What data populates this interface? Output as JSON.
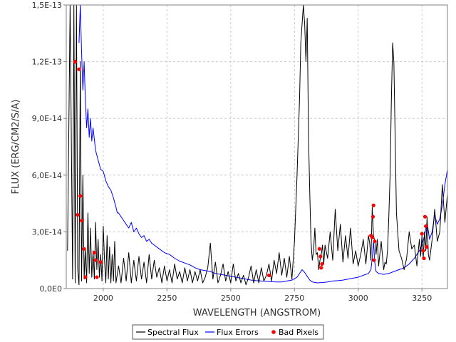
{
  "chart_data": {
    "type": "line",
    "xlabel": "WAVELENGTH (ANGSTROM)",
    "ylabel": "FLUX (ERG/CM2/S/A)",
    "xlim": [
      1855,
      3350
    ],
    "ylim": [
      0,
      1.5e-13
    ],
    "xticks": [
      2000,
      2250,
      2500,
      2750,
      3000,
      3250
    ],
    "xtick_labels": [
      "2000",
      "2250",
      "2500",
      "2750",
      "3000",
      "3250"
    ],
    "yticks": [
      0,
      3e-14,
      6e-14,
      9e-14,
      1.2e-13,
      1.5e-13
    ],
    "ytick_labels": [
      "0,0E0",
      "3,0E-14",
      "6,0E-14",
      "9,0E-14",
      "1,2E-13",
      "1,5E-13"
    ],
    "grid": true,
    "legend_position": "bottom-center",
    "series": [
      {
        "name": "Spectral Flux",
        "color": "#000000",
        "x": [
          1860,
          1870,
          1880,
          1885,
          1890,
          1895,
          1900,
          1905,
          1910,
          1915,
          1920,
          1925,
          1930,
          1935,
          1940,
          1945,
          1950,
          1955,
          1960,
          1965,
          1970,
          1975,
          1980,
          1985,
          1990,
          1995,
          2000,
          2005,
          2010,
          2015,
          2020,
          2025,
          2030,
          2035,
          2040,
          2045,
          2050,
          2060,
          2070,
          2080,
          2090,
          2100,
          2110,
          2120,
          2130,
          2140,
          2150,
          2160,
          2170,
          2180,
          2190,
          2200,
          2210,
          2220,
          2230,
          2240,
          2250,
          2260,
          2270,
          2280,
          2290,
          2300,
          2310,
          2320,
          2330,
          2340,
          2350,
          2360,
          2370,
          2380,
          2390,
          2400,
          2410,
          2420,
          2430,
          2440,
          2450,
          2460,
          2470,
          2480,
          2490,
          2500,
          2510,
          2520,
          2530,
          2540,
          2550,
          2560,
          2570,
          2580,
          2590,
          2600,
          2610,
          2620,
          2630,
          2640,
          2650,
          2660,
          2670,
          2680,
          2690,
          2700,
          2710,
          2720,
          2730,
          2740,
          2750,
          2760,
          2770,
          2775,
          2780,
          2785,
          2790,
          2795,
          2800,
          2805,
          2810,
          2815,
          2820,
          2825,
          2830,
          2835,
          2840,
          2845,
          2850,
          2855,
          2860,
          2865,
          2870,
          2880,
          2890,
          2900,
          2910,
          2920,
          2930,
          2940,
          2950,
          2960,
          2970,
          2980,
          2990,
          3000,
          3010,
          3020,
          3030,
          3040,
          3045,
          3050,
          3055,
          3060,
          3065,
          3070,
          3075,
          3080,
          3090,
          3100,
          3105,
          3110,
          3115,
          3120,
          3125,
          3130,
          3135,
          3140,
          3145,
          3150,
          3160,
          3170,
          3180,
          3190,
          3200,
          3210,
          3220,
          3230,
          3240,
          3245,
          3250,
          3255,
          3260,
          3265,
          3270,
          3275,
          3280,
          3290,
          3300,
          3310,
          3320,
          3330,
          3340,
          3350
        ],
        "y": [
          2e-14,
          1.5e-13,
          5e-15,
          1.5e-13,
          3e-15,
          1.5e-13,
          1e-14,
          2e-15,
          1.2e-13,
          4e-15,
          6e-14,
          5e-15,
          2.1e-14,
          3e-15,
          4e-14,
          8e-15,
          3.2e-14,
          6e-15,
          2e-14,
          5e-15,
          3.5e-14,
          1e-14,
          2.6e-14,
          6e-15,
          1.8e-14,
          4e-15,
          3.3e-14,
          1.5e-14,
          3e-15,
          2.8e-14,
          5e-15,
          2.2e-14,
          3e-15,
          1.8e-14,
          4e-15,
          2.5e-14,
          3e-15,
          1.2e-14,
          3e-15,
          1.6e-14,
          4e-15,
          1.9e-14,
          3e-15,
          1.5e-14,
          4e-15,
          1.7e-14,
          5e-15,
          1.4e-14,
          3e-15,
          1.8e-14,
          5e-15,
          1.5e-14,
          6e-15,
          1.1e-14,
          3e-15,
          1.2e-14,
          4e-15,
          1e-14,
          3e-15,
          1.3e-14,
          5e-15,
          9e-15,
          3e-15,
          1.1e-14,
          4e-15,
          1e-14,
          3e-15,
          9e-15,
          4e-15,
          1e-14,
          3e-15,
          6e-15,
          1.1e-14,
          2.4e-14,
          5e-15,
          1.4e-14,
          3e-15,
          7e-15,
          1.3e-14,
          4e-15,
          9e-15,
          3e-15,
          1.3e-14,
          4e-15,
          8e-15,
          3e-15,
          7e-15,
          2e-15,
          6e-15,
          1.2e-14,
          3e-15,
          1e-14,
          3e-15,
          1.1e-14,
          4e-15,
          7e-15,
          1.3e-14,
          4e-15,
          1.5e-14,
          8e-15,
          1.9e-14,
          7e-15,
          1.6e-14,
          6e-15,
          1.7e-14,
          5e-15,
          2.5e-14,
          6e-14,
          1e-13,
          1.3e-13,
          1.4e-13,
          1.5e-13,
          1.4e-13,
          1.2e-13,
          1.43e-13,
          8e-14,
          5e-14,
          2.5e-14,
          1.5e-14,
          2e-14,
          3.2e-14,
          1.8e-14,
          1.9e-14,
          1e-14,
          1.5e-14,
          1.8e-14,
          2.3e-14,
          1.3e-14,
          2.3e-14,
          1.6e-14,
          3e-14,
          1.5e-14,
          4.2e-14,
          2e-14,
          3.4e-14,
          1.4e-14,
          2.8e-14,
          1.6e-14,
          3.2e-14,
          1.3e-14,
          2e-14,
          1.2e-14,
          1.8e-14,
          2.6e-14,
          1.3e-14,
          2.8e-14,
          2.4e-14,
          1.5e-14,
          4.3e-14,
          2.8e-14,
          2.5e-14,
          1.8e-14,
          2.6e-14,
          1.2e-14,
          2.5e-14,
          1e-14,
          1.4e-14,
          1.3e-14,
          2e-14,
          3.8e-14,
          6e-14,
          1e-13,
          1.3e-13,
          1.2e-13,
          8e-14,
          4e-14,
          2e-14,
          1.6e-14,
          1e-14,
          1.6e-14,
          3e-14,
          2.1e-14,
          2.3e-14,
          1.2e-14,
          2.6e-14,
          1.7e-14,
          2.8e-14,
          1.6e-14,
          3e-14,
          2e-14,
          3.8e-14,
          1.8e-14,
          1.5e-14,
          2.6e-14,
          4.2e-14,
          2.5e-14,
          3e-14,
          5.5e-14,
          3.5e-14,
          5e-14
        ]
      },
      {
        "name": "Flux Errors",
        "color": "#0000ff",
        "x": [
          1905,
          1910,
          1915,
          1920,
          1925,
          1930,
          1935,
          1940,
          1945,
          1950,
          1955,
          1960,
          1970,
          1980,
          1990,
          2000,
          2010,
          2020,
          2030,
          2040,
          2050,
          2055,
          2060,
          2070,
          2080,
          2090,
          2100,
          2110,
          2120,
          2130,
          2140,
          2150,
          2160,
          2170,
          2180,
          2190,
          2200,
          2220,
          2240,
          2260,
          2280,
          2300,
          2320,
          2340,
          2360,
          2380,
          2400,
          2420,
          2440,
          2460,
          2480,
          2500,
          2520,
          2540,
          2560,
          2580,
          2600,
          2620,
          2640,
          2660,
          2680,
          2700,
          2720,
          2740,
          2760,
          2770,
          2780,
          2790,
          2800,
          2810,
          2820,
          2840,
          2860,
          2880,
          2900,
          2920,
          2940,
          2960,
          2980,
          3000,
          3020,
          3040,
          3050,
          3055,
          3060,
          3065,
          3070,
          3080,
          3100,
          3120,
          3140,
          3160,
          3180,
          3200,
          3220,
          3240,
          3250,
          3260,
          3270,
          3280,
          3290,
          3300,
          3310,
          3320,
          3330,
          3340,
          3350
        ],
        "y": [
          1.3e-13,
          1.5e-13,
          1.25e-13,
          1.05e-13,
          1.2e-13,
          1e-13,
          8.5e-14,
          9.5e-14,
          8e-14,
          9e-14,
          7.8e-14,
          8.5e-14,
          7.3e-14,
          6.8e-14,
          6.3e-14,
          6.2e-14,
          5.7e-14,
          5.4e-14,
          5.2e-14,
          4.8e-14,
          4.3e-14,
          4e-14,
          4e-14,
          3.8e-14,
          3.6e-14,
          3.4e-14,
          3.2e-14,
          3.5e-14,
          3e-14,
          3.2e-14,
          2.9e-14,
          2.7e-14,
          2.8e-14,
          2.5e-14,
          2.6e-14,
          2.4e-14,
          2.3e-14,
          2.1e-14,
          1.9e-14,
          1.8e-14,
          1.6e-14,
          1.45e-14,
          1.35e-14,
          1.25e-14,
          1.1e-14,
          1e-14,
          9.5e-15,
          9e-15,
          8e-15,
          7.5e-15,
          7e-15,
          6.5e-15,
          6e-15,
          5.5e-15,
          5e-15,
          4.5e-15,
          4.2e-15,
          4e-15,
          3.8e-15,
          3.6e-15,
          3.5e-15,
          3.5e-15,
          4e-15,
          4.5e-15,
          6e-15,
          8e-15,
          1e-14,
          8.5e-15,
          6.5e-15,
          4.5e-15,
          3.5e-15,
          3e-15,
          3.2e-15,
          3.5e-15,
          4e-15,
          4.2e-15,
          4.5e-15,
          5e-15,
          5.5e-15,
          6e-15,
          7e-15,
          8e-15,
          1e-14,
          1.6e-14,
          2.5e-14,
          1.4e-14,
          9e-15,
          8e-15,
          7.5e-15,
          8e-15,
          9e-15,
          1e-14,
          1.1e-14,
          1.3e-14,
          1.6e-14,
          2e-14,
          2.3e-14,
          2.8e-14,
          3.5e-14,
          2.6e-14,
          3e-14,
          3.9e-14,
          3.4e-14,
          3.7e-14,
          4.4e-14,
          5.5e-14,
          6.3e-14
        ]
      },
      {
        "name": "Bad Pixels",
        "color": "#ff0000",
        "x": [
          1890,
          1905,
          1900,
          1910,
          1915,
          1925,
          1930,
          1965,
          1970,
          1975,
          1990,
          2650,
          2848,
          2852,
          2855,
          2858,
          3050,
          3055,
          3058,
          3060,
          3062,
          3065,
          3250,
          3255,
          3258,
          3262,
          3265,
          3268
        ],
        "y": [
          1.2e-13,
          1.16e-13,
          3.9e-14,
          4.9e-14,
          3.6e-14,
          2.1e-14,
          6e-15,
          1.9e-14,
          1.5e-14,
          6e-15,
          1.4e-14,
          7e-15,
          2.1e-14,
          1.7e-14,
          1.1e-14,
          1.3e-14,
          2.8e-14,
          2.7e-14,
          3.8e-14,
          4.4e-14,
          1.5e-14,
          2.5e-14,
          2.9e-14,
          2e-14,
          1.6e-14,
          3.8e-14,
          3.3e-14,
          2.2e-14
        ]
      }
    ]
  }
}
